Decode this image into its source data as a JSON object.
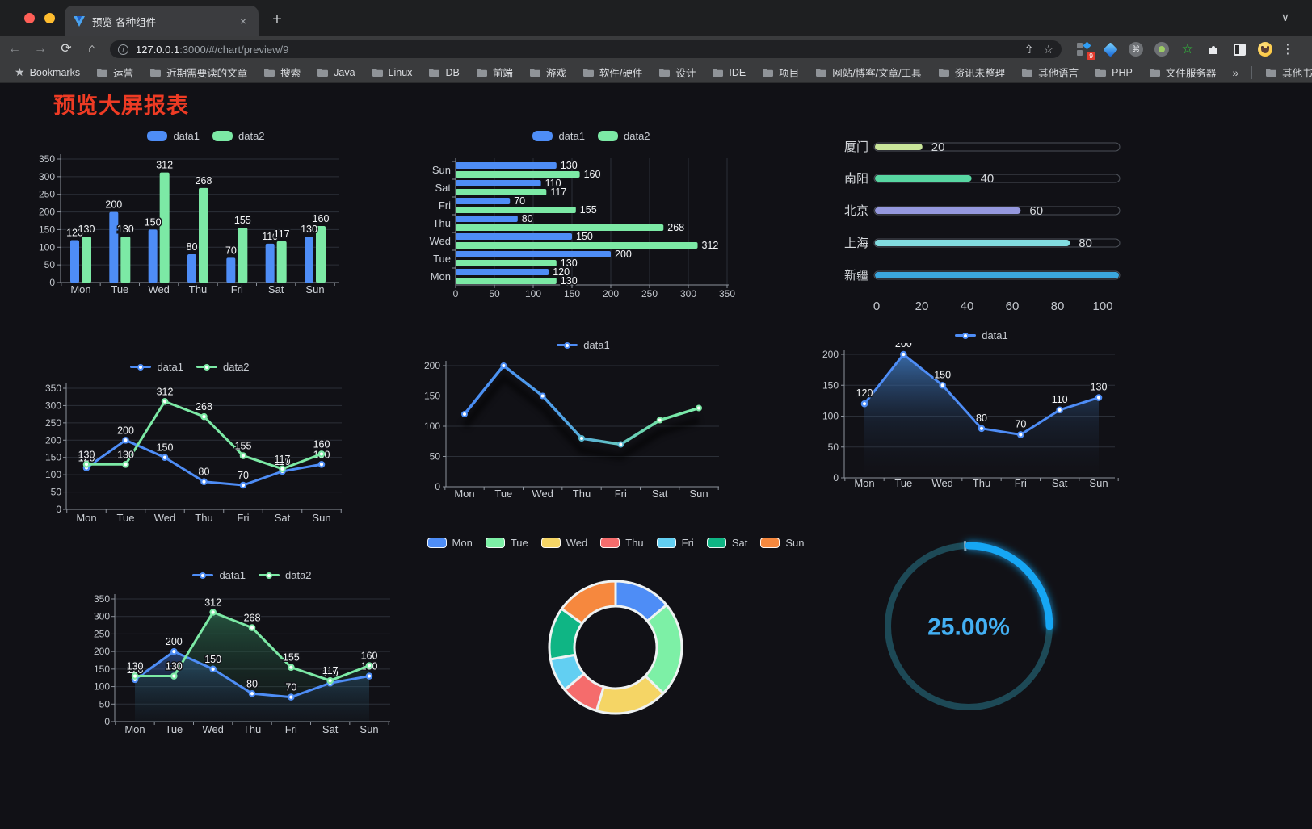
{
  "browser": {
    "tab_title": "预览-各种组件",
    "new_tab_label": "+",
    "tab_close_label": "×",
    "strip_chevron": "∨",
    "url_host": "127.0.0.1",
    "url_rest": ":3000/#/chart/preview/9",
    "back_icon": "←",
    "forward_icon": "→",
    "reload_icon": "⟳",
    "home_icon": "⌂",
    "share_icon": "⇧",
    "star_icon": "☆",
    "menu_icon": "⋮",
    "extension_badge": "9",
    "bookmarks_label": "Bookmarks",
    "bookmarks": [
      "运营",
      "近期需要读的文章",
      "搜索",
      "Java",
      "Linux",
      "DB",
      "前端",
      "游戏",
      "软件/硬件",
      "设计",
      "IDE",
      "项目",
      "网站/博客/文章/工具",
      "资讯未整理",
      "其他语言",
      "PHP",
      "文件服务器"
    ],
    "bookmarks_overflow": "»",
    "other_bookmarks": "其他书签"
  },
  "page": {
    "title": "预览大屏报表",
    "title_color": "#ee3b24",
    "background": "#111116"
  },
  "chart_data": [
    {
      "id": "bar-vertical",
      "type": "bar",
      "categories": [
        "Mon",
        "Tue",
        "Wed",
        "Thu",
        "Fri",
        "Sat",
        "Sun"
      ],
      "series": [
        {
          "name": "data1",
          "color": "#4e8df6",
          "values": [
            120,
            200,
            150,
            80,
            70,
            110,
            130
          ]
        },
        {
          "name": "data2",
          "color": "#7ce9a5",
          "values": [
            130,
            130,
            312,
            268,
            155,
            117,
            160
          ]
        }
      ],
      "ylim": [
        0,
        350
      ],
      "ytick": 50,
      "legend_position": "top",
      "value_labels": true,
      "grid": true
    },
    {
      "id": "bar-horizontal",
      "type": "bar-h",
      "categories_bottom_to_top": [
        "Mon",
        "Tue",
        "Wed",
        "Thu",
        "Fri",
        "Sat",
        "Sun"
      ],
      "series": [
        {
          "name": "data1",
          "color": "#4e8df6",
          "values": [
            120,
            200,
            150,
            80,
            70,
            110,
            130
          ]
        },
        {
          "name": "data2",
          "color": "#7ce9a5",
          "values": [
            130,
            130,
            312,
            268,
            155,
            117,
            160
          ]
        }
      ],
      "xlim": [
        0,
        350
      ],
      "xtick": 50,
      "legend_position": "top",
      "value_labels": true,
      "grid": true
    },
    {
      "id": "progress-list",
      "type": "progress",
      "items": [
        {
          "label": "厦门",
          "value": 20,
          "color": "#c9e59a"
        },
        {
          "label": "南阳",
          "value": 40,
          "color": "#58d7a2"
        },
        {
          "label": "北京",
          "value": 60,
          "color": "#9598de"
        },
        {
          "label": "上海",
          "value": 80,
          "color": "#82dce0"
        },
        {
          "label": "新疆",
          "value": 100,
          "color": "#3ba6dd"
        }
      ],
      "xlim": [
        0,
        100
      ],
      "xticks": [
        0,
        20,
        40,
        60,
        80,
        100
      ]
    },
    {
      "id": "line-two",
      "type": "line",
      "categories": [
        "Mon",
        "Tue",
        "Wed",
        "Thu",
        "Fri",
        "Sat",
        "Sun"
      ],
      "series": [
        {
          "name": "data1",
          "color": "#4e8df6",
          "values": [
            120,
            200,
            150,
            80,
            70,
            110,
            130
          ]
        },
        {
          "name": "data2",
          "color": "#7ce9a5",
          "values": [
            130,
            130,
            312,
            268,
            155,
            117,
            160
          ]
        }
      ],
      "ylim": [
        0,
        350
      ],
      "ytick": 50,
      "legend_position": "top",
      "value_labels": true,
      "grid": true
    },
    {
      "id": "line-gradient",
      "type": "line",
      "categories": [
        "Mon",
        "Tue",
        "Wed",
        "Thu",
        "Fri",
        "Sat",
        "Sun"
      ],
      "series": [
        {
          "name": "data1",
          "color": "#4e8df6",
          "gradient": [
            "#4a8cf5",
            "#4fa0e8",
            "#74e3a4",
            "#7dedad"
          ],
          "values": [
            120,
            200,
            150,
            80,
            70,
            110,
            130
          ]
        }
      ],
      "ylim": [
        0,
        200
      ],
      "ytick": 50,
      "legend_position": "top",
      "value_labels": false,
      "grid": true,
      "shadow": true
    },
    {
      "id": "area-single",
      "type": "area",
      "categories": [
        "Mon",
        "Tue",
        "Wed",
        "Thu",
        "Fri",
        "Sat",
        "Sun"
      ],
      "series": [
        {
          "name": "data1",
          "color": "#4e8df6",
          "values": [
            120,
            200,
            150,
            80,
            70,
            110,
            130
          ]
        }
      ],
      "ylim": [
        0,
        200
      ],
      "ytick": 50,
      "legend_position": "top",
      "value_labels": true,
      "grid": true
    },
    {
      "id": "area-two",
      "type": "area",
      "categories": [
        "Mon",
        "Tue",
        "Wed",
        "Thu",
        "Fri",
        "Sat",
        "Sun"
      ],
      "series": [
        {
          "name": "data1",
          "color": "#4e8df6",
          "values": [
            120,
            200,
            150,
            80,
            70,
            110,
            130
          ]
        },
        {
          "name": "data2",
          "color": "#7ce9a5",
          "values": [
            130,
            130,
            312,
            268,
            155,
            117,
            160
          ]
        }
      ],
      "ylim": [
        0,
        350
      ],
      "ytick": 50,
      "legend_position": "top",
      "value_labels": true,
      "grid": true
    },
    {
      "id": "donut",
      "type": "pie",
      "items": [
        {
          "label": "Mon",
          "value": 120,
          "color": "#4e8df6"
        },
        {
          "label": "Tue",
          "value": 200,
          "color": "#7df0a6"
        },
        {
          "label": "Wed",
          "value": 150,
          "color": "#f5d565"
        },
        {
          "label": "Thu",
          "value": 80,
          "color": "#f56c6c"
        },
        {
          "label": "Fri",
          "value": 70,
          "color": "#62cff2"
        },
        {
          "label": "Sat",
          "value": 110,
          "color": "#0fb584"
        },
        {
          "label": "Sun",
          "value": 130,
          "color": "#f6883e"
        }
      ],
      "legend_position": "top",
      "inner_radius_ratio": 0.62
    },
    {
      "id": "gauge",
      "type": "gauge",
      "percent": 25,
      "label": "25.00%",
      "color": "#16a6f4",
      "track_color": "#1d4956",
      "text_color": "#43b0f4"
    }
  ]
}
